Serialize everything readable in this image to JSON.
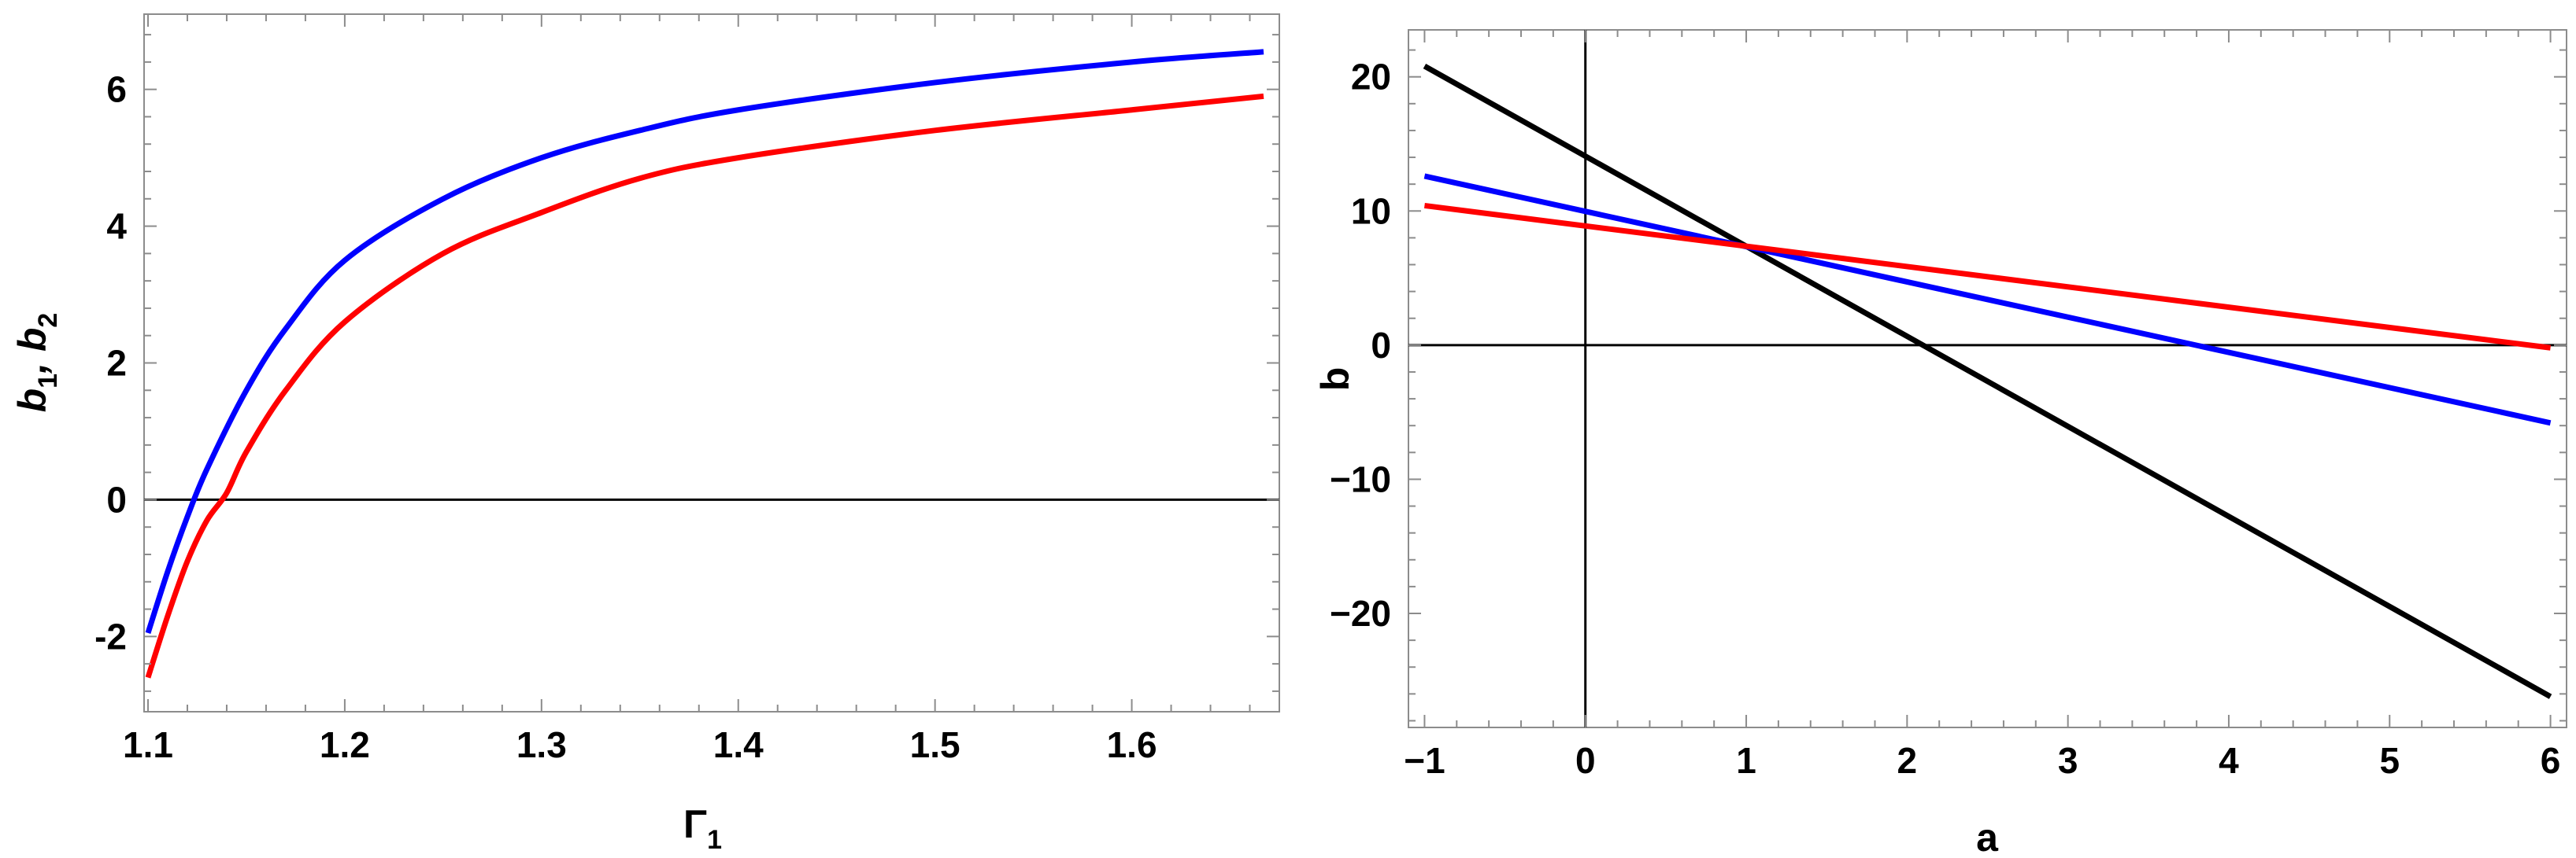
{
  "chart_data": [
    {
      "type": "line",
      "title": "",
      "xlabel": "Γ",
      "xlabel_sub": "1",
      "ylabel_parts": [
        "b",
        "1",
        ", b",
        "2"
      ],
      "xlim": [
        1.098,
        1.675
      ],
      "ylim": [
        -3.1,
        7.1
      ],
      "xticks": [
        1.1,
        1.2,
        1.3,
        1.4,
        1.5,
        1.6
      ],
      "xtick_labels": [
        "1.1",
        "1.2",
        "1.3",
        "1.4",
        "1.5",
        "1.6"
      ],
      "yticks": [
        -2,
        0,
        2,
        4,
        6
      ],
      "ytick_labels": [
        "-2",
        "0",
        "2",
        "4",
        "6"
      ],
      "hlines": [
        0
      ],
      "series": [
        {
          "color": "#0000ff",
          "x": [
            1.1,
            1.11,
            1.12,
            1.13,
            1.15,
            1.17,
            1.2,
            1.25,
            1.3,
            1.35,
            1.4,
            1.5,
            1.6,
            1.667
          ],
          "values": [
            -1.95,
            -1.05,
            -0.25,
            0.45,
            1.6,
            2.5,
            3.5,
            4.4,
            5.0,
            5.4,
            5.7,
            6.1,
            6.4,
            6.55
          ]
        },
        {
          "color": "#ff0000",
          "x": [
            1.1,
            1.11,
            1.12,
            1.13,
            1.14,
            1.15,
            1.17,
            1.2,
            1.25,
            1.3,
            1.35,
            1.4,
            1.5,
            1.6,
            1.667
          ],
          "values": [
            -2.6,
            -1.7,
            -0.9,
            -0.3,
            0.1,
            0.7,
            1.6,
            2.6,
            3.6,
            4.2,
            4.7,
            5.0,
            5.4,
            5.7,
            5.9
          ]
        }
      ]
    },
    {
      "type": "line",
      "title": "",
      "xlabel": "a",
      "ylabel": "b",
      "xlim": [
        -1.1,
        6.1
      ],
      "ylim": [
        -28.5,
        23.5
      ],
      "xticks": [
        -1,
        0,
        1,
        2,
        3,
        4,
        5,
        6
      ],
      "xtick_labels": [
        "−1",
        "0",
        "1",
        "2",
        "3",
        "4",
        "5",
        "6"
      ],
      "yticks": [
        -20,
        -10,
        0,
        10,
        20
      ],
      "ytick_labels": [
        "−20",
        "−10",
        "0",
        "10",
        "20"
      ],
      "hlines": [
        0
      ],
      "vlines": [
        0
      ],
      "series": [
        {
          "color": "#000000",
          "x": [
            -1,
            6
          ],
          "values": [
            20.8,
            -26.2
          ]
        },
        {
          "color": "#0000ff",
          "x": [
            -1,
            6
          ],
          "values": [
            12.6,
            -5.8
          ]
        },
        {
          "color": "#ff0000",
          "x": [
            -1,
            6
          ],
          "values": [
            10.4,
            -0.2
          ]
        }
      ]
    }
  ]
}
